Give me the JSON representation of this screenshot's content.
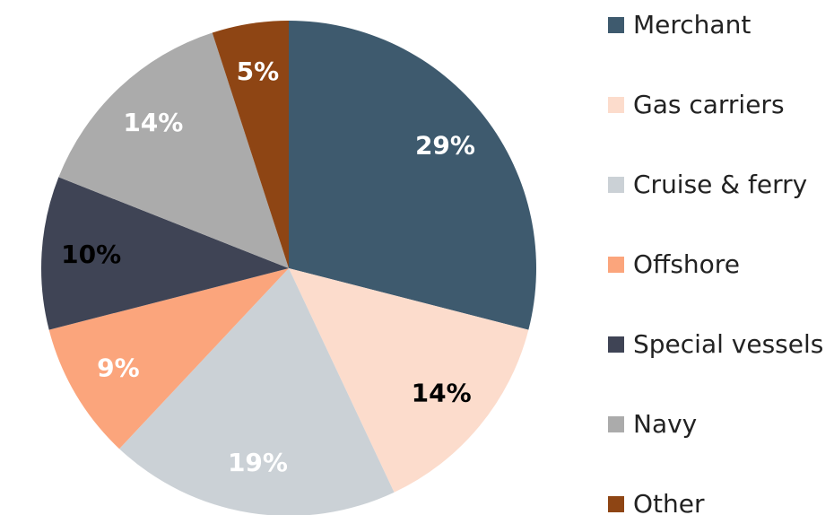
{
  "chart_data": {
    "type": "pie",
    "categories": [
      "Merchant",
      "Gas carriers",
      "Cruise & ferry",
      "Offshore",
      "Special vessels",
      "Navy",
      "Other"
    ],
    "values": [
      29,
      14,
      19,
      9,
      10,
      14,
      5
    ],
    "value_labels": [
      "29%",
      "14%",
      "19%",
      "9%",
      "10%",
      "14%",
      "5%"
    ],
    "colors": [
      "#3e5a6e",
      "#fcdccc",
      "#cbd1d6",
      "#fba57c",
      "#3f4455",
      "#ababab",
      "#8e4514"
    ],
    "label_colors": [
      "#ffffff",
      "#000000",
      "#ffffff",
      "#ffffff",
      "#000000",
      "#ffffff",
      "#ffffff"
    ],
    "legend": "right"
  }
}
